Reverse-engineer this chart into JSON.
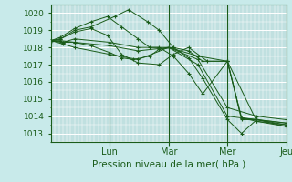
{
  "title": "",
  "xlabel": "Pression niveau de la mer( hPa )",
  "ylabel": "",
  "bg_color": "#c8eaea",
  "plot_bg_color": "#c0e0e0",
  "grid_color": "#ffffff",
  "line_color": "#1a5c1a",
  "marker_color": "#1a5c1a",
  "ylim": [
    1012.5,
    1020.5
  ],
  "yticks": [
    1013,
    1014,
    1015,
    1016,
    1017,
    1018,
    1019,
    1020
  ],
  "day_labels": [
    "Lun",
    "Mar",
    "Mer",
    "Jeu"
  ],
  "day_positions": [
    0.25,
    0.5,
    0.75,
    1.0
  ],
  "num_days": 4,
  "series": [
    {
      "x": [
        0.0,
        0.05,
        0.1,
        0.25,
        0.37,
        0.5,
        0.625,
        0.75,
        0.875,
        1.0
      ],
      "y": [
        1018.4,
        1018.2,
        1018.0,
        1017.6,
        1017.3,
        1018.0,
        1017.0,
        1014.0,
        1013.8,
        1013.6
      ]
    },
    {
      "x": [
        0.0,
        0.05,
        0.1,
        0.25,
        0.37,
        0.5,
        0.625,
        0.75,
        0.875,
        1.0
      ],
      "y": [
        1018.4,
        1018.3,
        1018.3,
        1018.1,
        1017.8,
        1018.0,
        1017.3,
        1014.5,
        1014.0,
        1013.8
      ]
    },
    {
      "x": [
        0.0,
        0.05,
        0.1,
        0.25,
        0.37,
        0.5,
        0.625,
        0.75,
        0.875,
        1.0
      ],
      "y": [
        1018.4,
        1018.3,
        1018.5,
        1018.3,
        1018.0,
        1018.0,
        1017.5,
        1017.2,
        1013.7,
        1013.5
      ]
    },
    {
      "x": [
        0.0,
        0.04,
        0.1,
        0.17,
        0.27,
        0.33,
        0.41,
        0.46,
        0.52,
        0.585,
        0.645,
        0.75,
        0.81,
        0.875,
        1.0
      ],
      "y": [
        1018.4,
        1018.5,
        1019.0,
        1019.2,
        1019.8,
        1020.2,
        1019.5,
        1019.0,
        1018.0,
        1017.4,
        1016.2,
        1013.8,
        1013.0,
        1013.8,
        1013.4
      ]
    },
    {
      "x": [
        0.0,
        0.04,
        0.1,
        0.17,
        0.24,
        0.3,
        0.37,
        0.42,
        0.46,
        0.52,
        0.585,
        0.645,
        0.75,
        0.81,
        0.875,
        1.0
      ],
      "y": [
        1018.4,
        1018.6,
        1019.1,
        1019.5,
        1019.8,
        1019.2,
        1018.5,
        1018.0,
        1018.0,
        1017.5,
        1016.5,
        1015.3,
        1017.2,
        1013.8,
        1013.8,
        1013.6
      ]
    },
    {
      "x": [
        0.0,
        0.04,
        0.1,
        0.17,
        0.24,
        0.3,
        0.37,
        0.46,
        0.52,
        0.585,
        0.665,
        0.75,
        0.81,
        0.875,
        1.0
      ],
      "y": [
        1018.4,
        1018.5,
        1018.9,
        1019.1,
        1018.7,
        1017.6,
        1017.1,
        1017.0,
        1017.6,
        1018.0,
        1017.2,
        1017.2,
        1013.9,
        1013.7,
        1013.4
      ]
    },
    {
      "x": [
        0.0,
        0.04,
        0.1,
        0.17,
        0.25,
        0.3,
        0.35,
        0.42,
        0.46,
        0.52,
        0.585,
        0.645,
        0.75,
        0.81,
        0.875,
        1.0
      ],
      "y": [
        1018.4,
        1018.4,
        1018.3,
        1018.1,
        1017.7,
        1017.4,
        1017.3,
        1017.5,
        1017.9,
        1018.0,
        1017.8,
        1017.2,
        1017.2,
        1013.9,
        1013.8,
        1013.5
      ]
    }
  ]
}
